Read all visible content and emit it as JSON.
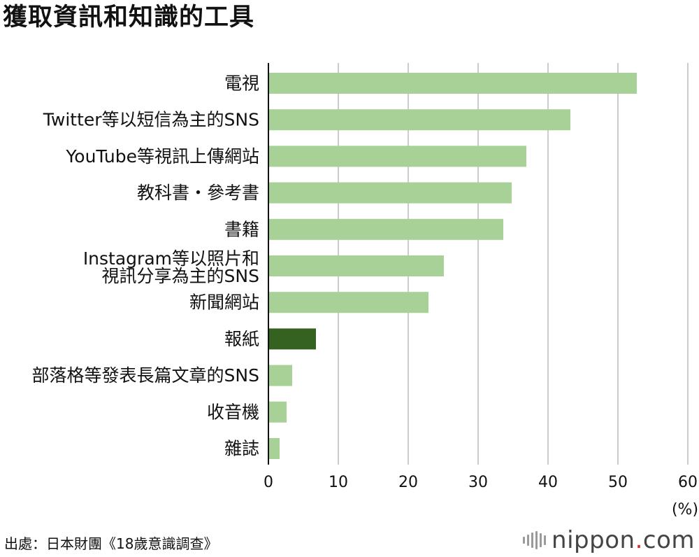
{
  "title": "獲取資訊和知識的工具",
  "source": "出處：日本財團《18歲意識調查》",
  "logo": {
    "pre": "nippon",
    "dot": ".",
    "post": "com"
  },
  "colors": {
    "bar": "#a7d196",
    "highlight": "#356121",
    "grid": "#cccccc",
    "axis": "#111111"
  },
  "chart_data": {
    "type": "bar",
    "orientation": "horizontal",
    "categories": [
      "電視",
      "Twitter等以短信為主的SNS",
      "YouTube等視訊上傳網站",
      "教科書・參考書",
      "書籍",
      "Instagram等以照片和\n視訊分享為主的SNS",
      "新聞網站",
      "報紙",
      "部落格等發表長篇文章的SNS",
      "收音機",
      "雜誌"
    ],
    "values": [
      52.7,
      43.2,
      36.9,
      34.8,
      33.6,
      25.1,
      22.9,
      6.8,
      3.4,
      2.6,
      1.6
    ],
    "highlight_category": "報紙",
    "xlim": [
      0,
      60
    ],
    "xticks": [
      "0",
      "10",
      "20",
      "30",
      "40",
      "50",
      "60"
    ],
    "unit": "(%)",
    "grid": true
  }
}
